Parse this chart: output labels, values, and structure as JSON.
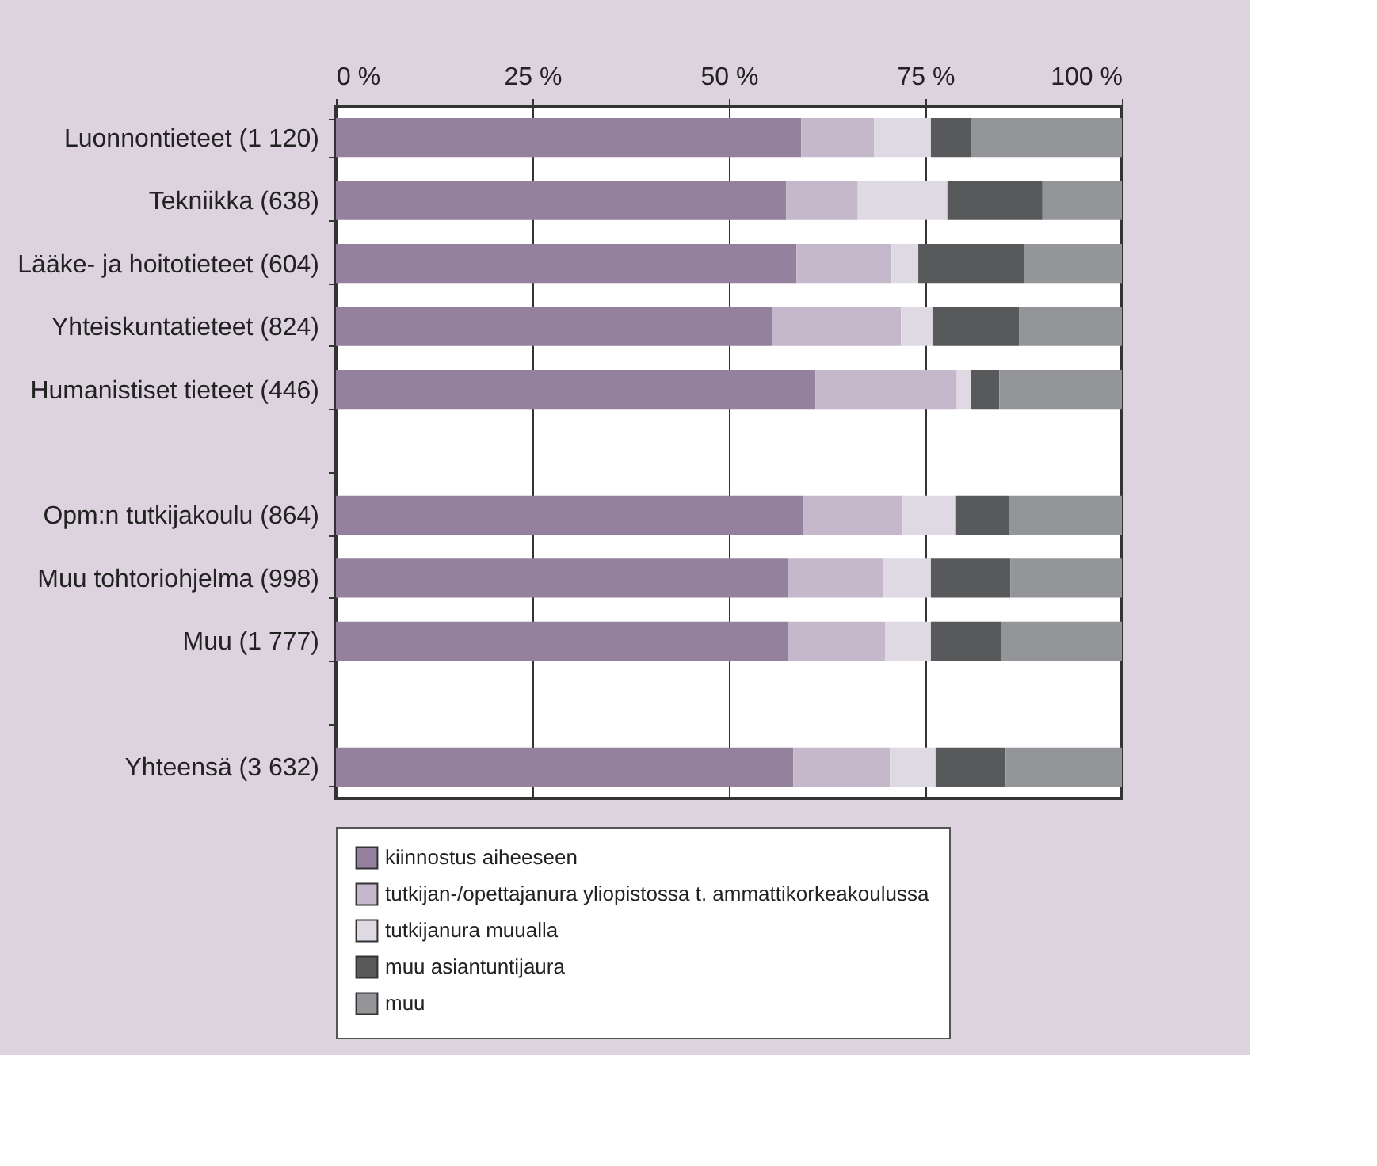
{
  "chart_data": {
    "type": "bar",
    "orientation": "horizontal",
    "stacked": true,
    "categories": [
      "Luonnontieteet (1 120)",
      "Tekniikka (638)",
      "Lääke- ja hoitotieteet (604)",
      "Yhteiskuntatieteet (824)",
      "Humanistiset tieteet (446)",
      null,
      "Opm:n tutkijakoulu (864)",
      "Muu tohtoriohjelma (998)",
      "Muu (1 777)",
      null,
      "Yhteensä (3 632)"
    ],
    "series": [
      {
        "name": "kiinnostus aiheeseen",
        "color": "#94819e",
        "values": [
          59.2,
          57.3,
          58.6,
          55.5,
          61.0,
          null,
          59.4,
          57.5,
          57.5,
          null,
          58.2
        ]
      },
      {
        "name": "tutkijan-/opettajanura yliopistossa t. ammattikorkeakoulussa",
        "color": "#c5b8ca",
        "values": [
          9.3,
          9.1,
          12.1,
          16.4,
          18.0,
          null,
          12.7,
          12.2,
          12.4,
          null,
          12.3
        ]
      },
      {
        "name": "tutkijanura muualla",
        "color": "#dfd9e3",
        "values": [
          7.2,
          11.4,
          3.4,
          4.0,
          1.8,
          null,
          6.7,
          6.0,
          5.8,
          null,
          5.8
        ]
      },
      {
        "name": "muu asiantuntijaura",
        "color": "#58595b",
        "values": [
          5.1,
          12.1,
          13.4,
          11.0,
          3.6,
          null,
          6.8,
          10.1,
          8.9,
          null,
          8.9
        ]
      },
      {
        "name": "muu",
        "color": "#939598",
        "values": [
          19.2,
          10.1,
          12.5,
          13.1,
          15.6,
          null,
          14.4,
          14.2,
          15.4,
          null,
          14.8
        ]
      }
    ],
    "xlim": [
      0,
      100
    ],
    "xticks": [
      {
        "value": 0,
        "label": "0 %"
      },
      {
        "value": 25,
        "label": "25 %"
      },
      {
        "value": 50,
        "label": "50 %"
      },
      {
        "value": 75,
        "label": "75 %"
      },
      {
        "value": 100,
        "label": "100 %"
      }
    ],
    "grid": "x",
    "legend": "bottom"
  }
}
